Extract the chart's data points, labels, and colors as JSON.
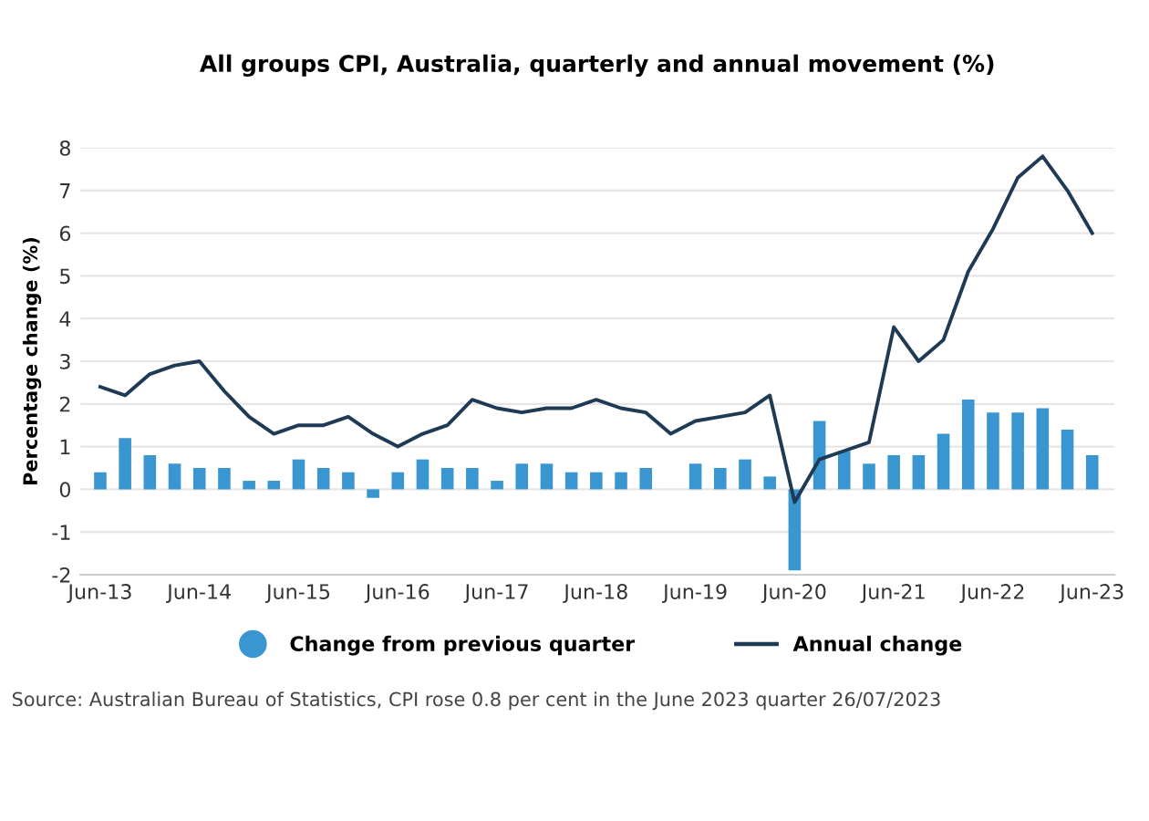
{
  "chart_data": {
    "type": "bar",
    "title": "All groups CPI, Australia, quarterly and annual movement (%)",
    "ylabel": "Percentage change (%)",
    "categories": [
      "Jun-13",
      null,
      null,
      null,
      "Jun-14",
      null,
      null,
      null,
      "Jun-15",
      null,
      null,
      null,
      "Jun-16",
      null,
      null,
      null,
      "Jun-17",
      null,
      null,
      null,
      "Jun-18",
      null,
      null,
      null,
      "Jun-19",
      null,
      null,
      null,
      "Jun-20",
      null,
      null,
      null,
      "Jun-21",
      null,
      null,
      null,
      "Jun-22",
      null,
      null,
      null,
      "Jun-23"
    ],
    "series": [
      {
        "name": "Change from previous quarter",
        "color": "#3a96d0",
        "values": [
          0.4,
          1.2,
          0.8,
          0.6,
          0.5,
          0.5,
          0.2,
          0.2,
          0.7,
          0.5,
          0.4,
          -0.2,
          0.4,
          0.7,
          0.5,
          0.5,
          0.2,
          0.6,
          0.6,
          0.4,
          0.4,
          0.4,
          0.5,
          0.0,
          0.6,
          0.5,
          0.7,
          0.3,
          -1.9,
          1.6,
          0.9,
          0.6,
          0.8,
          0.8,
          1.3,
          2.1,
          1.8,
          1.8,
          1.9,
          1.4,
          0.8
        ]
      },
      {
        "name": "Annual change",
        "type": "line",
        "color": "#1f3a55",
        "values": [
          2.4,
          2.2,
          2.7,
          2.9,
          3.0,
          2.3,
          1.7,
          1.3,
          1.5,
          1.5,
          1.7,
          1.3,
          1.0,
          1.3,
          1.5,
          2.1,
          1.9,
          1.8,
          1.9,
          1.9,
          2.1,
          1.9,
          1.8,
          1.3,
          1.6,
          1.7,
          1.8,
          2.2,
          -0.3,
          0.7,
          0.9,
          1.1,
          3.8,
          3.0,
          3.5,
          5.1,
          6.1,
          7.3,
          7.8,
          7.0,
          6.0
        ]
      }
    ],
    "ylim": [
      -2,
      8
    ],
    "yticks": [
      -2,
      -1,
      0,
      1,
      2,
      3,
      4,
      5,
      6,
      7,
      8
    ],
    "grid": "y",
    "legend": "bottom",
    "marker": "none",
    "line_style": "solid",
    "annotations": [
      "Source: Australian Bureau of Statistics, CPI rose 0.8 per cent in the June 2023 quarter 26/07/2023"
    ]
  }
}
